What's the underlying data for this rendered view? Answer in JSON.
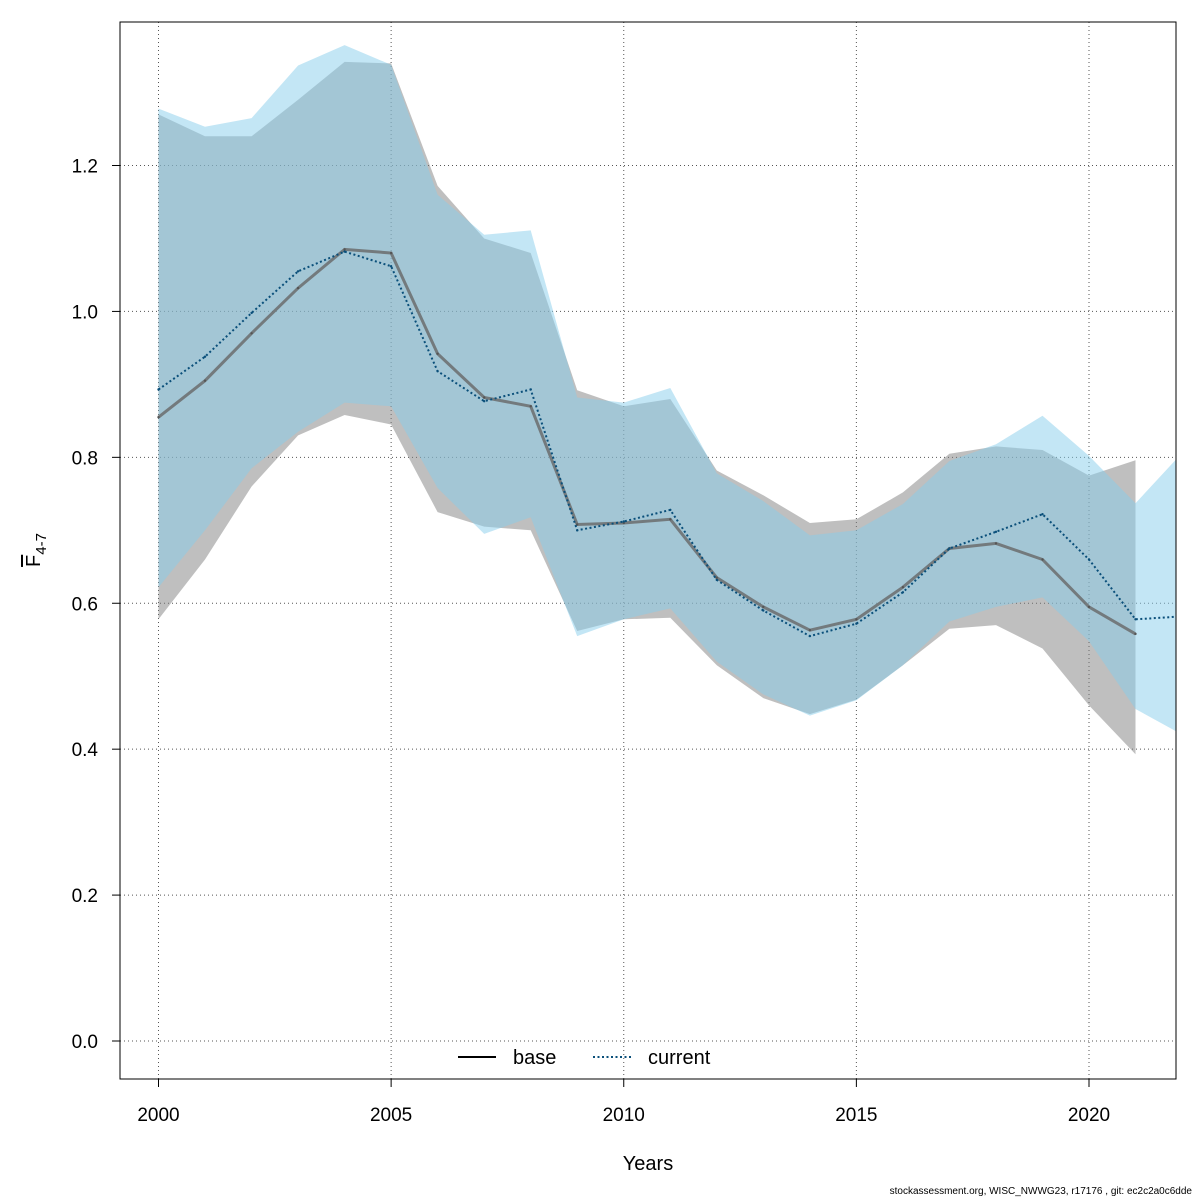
{
  "chart_data": {
    "type": "line",
    "xlabel": "Years",
    "ylabel": {
      "main": "F",
      "sub": "4-7"
    },
    "xlim": [
      1999.2,
      2022
    ],
    "ylim": [
      -0.05,
      1.39
    ],
    "x_ticks": [
      "2000",
      "2005",
      "2010",
      "2015",
      "2020"
    ],
    "y_ticks": [
      "0.0",
      "0.2",
      "0.4",
      "0.6",
      "0.8",
      "1.0",
      "1.2"
    ],
    "grid": true,
    "legend_position": "bottom",
    "series": [
      {
        "name": "base",
        "line_style": "solid",
        "line_color": "#000000",
        "band_color": "#808080",
        "x": [
          2000,
          2001,
          2002,
          2003,
          2004,
          2005,
          2006,
          2007,
          2008,
          2009,
          2010,
          2011,
          2012,
          2013,
          2014,
          2015,
          2016,
          2017,
          2018,
          2019,
          2020,
          2021
        ],
        "values": [
          0.855,
          0.905,
          0.97,
          1.032,
          1.085,
          1.08,
          0.942,
          0.882,
          0.87,
          0.708,
          0.71,
          0.715,
          0.635,
          0.595,
          0.563,
          0.578,
          0.622,
          0.675,
          0.682,
          0.66,
          0.595,
          0.558
        ],
        "lower": [
          0.578,
          0.66,
          0.76,
          0.83,
          0.858,
          0.845,
          0.725,
          0.705,
          0.7,
          0.562,
          0.578,
          0.58,
          0.515,
          0.47,
          0.448,
          0.468,
          0.515,
          0.565,
          0.57,
          0.538,
          0.46,
          0.393
        ],
        "upper": [
          1.27,
          1.24,
          1.24,
          1.29,
          1.342,
          1.34,
          1.172,
          1.1,
          1.08,
          0.892,
          0.87,
          0.88,
          0.782,
          0.748,
          0.71,
          0.715,
          0.752,
          0.805,
          0.815,
          0.81,
          0.775,
          0.796
        ]
      },
      {
        "name": "current",
        "line_style": "dotted",
        "line_color": "#0a4f7a",
        "band_color": "#87ceeb",
        "x": [
          2000,
          2001,
          2002,
          2003,
          2004,
          2005,
          2006,
          2007,
          2008,
          2009,
          2010,
          2011,
          2012,
          2013,
          2014,
          2015,
          2016,
          2017,
          2018,
          2019,
          2020,
          2021,
          2022
        ],
        "values": [
          0.893,
          0.938,
          0.998,
          1.055,
          1.082,
          1.062,
          0.918,
          0.877,
          0.893,
          0.7,
          0.712,
          0.728,
          0.632,
          0.59,
          0.555,
          0.572,
          0.615,
          0.675,
          0.698,
          0.722,
          0.66,
          0.578,
          0.582
        ],
        "lower": [
          0.622,
          0.7,
          0.785,
          0.835,
          0.875,
          0.87,
          0.758,
          0.695,
          0.718,
          0.555,
          0.578,
          0.593,
          0.52,
          0.475,
          0.446,
          0.467,
          0.515,
          0.575,
          0.595,
          0.608,
          0.548,
          0.455,
          0.42
        ],
        "upper": [
          1.278,
          1.253,
          1.265,
          1.337,
          1.365,
          1.338,
          1.16,
          1.105,
          1.111,
          0.882,
          0.875,
          0.895,
          0.778,
          0.74,
          0.693,
          0.7,
          0.736,
          0.795,
          0.818,
          0.857,
          0.802,
          0.737,
          0.806
        ]
      }
    ]
  },
  "footer_text": "stockassessment.org, WISC_NWWG23, r17176 , git: ec2c2a0c6dde"
}
